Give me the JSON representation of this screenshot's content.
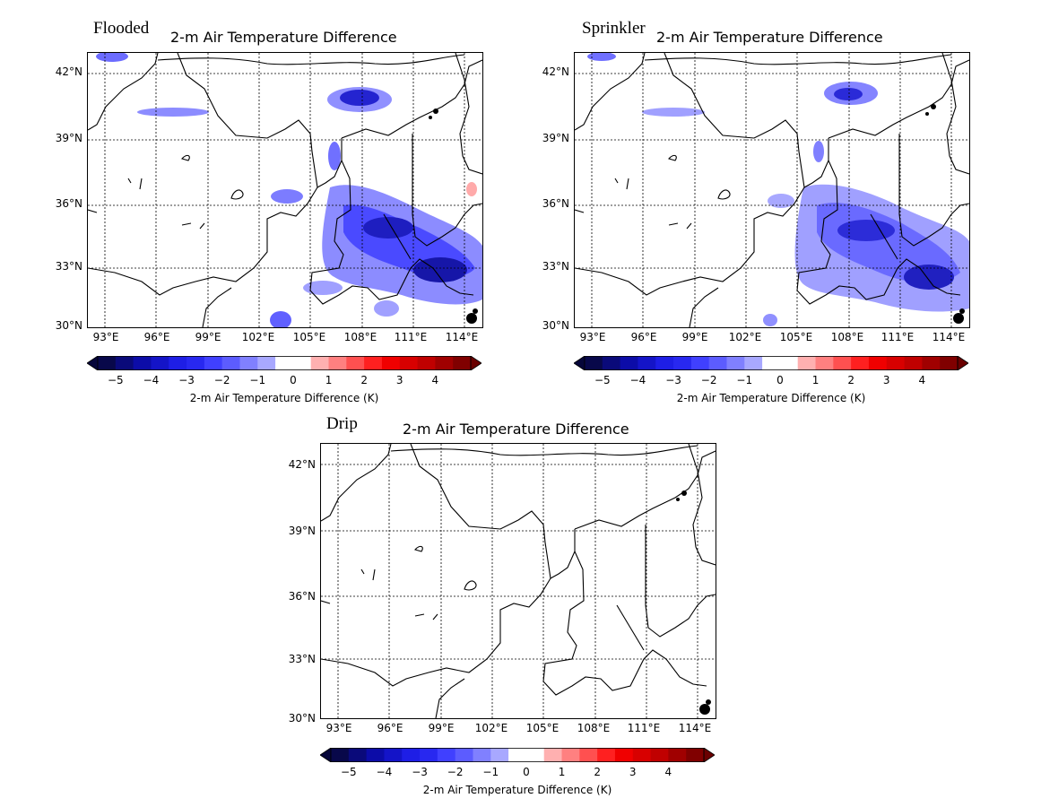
{
  "figure": {
    "panels": [
      {
        "id": "flooded",
        "label": "Flooded",
        "title": "2-m Air Temperature Difference",
        "colorbar_label": "2-m Air Temperature Difference (K)"
      },
      {
        "id": "sprinkler",
        "label": "Sprinkler",
        "title": "2-m Air Temperature Difference",
        "colorbar_label": "2-m Air Temperature Difference (K)"
      },
      {
        "id": "drip",
        "label": "Drip",
        "title": "2-m Air Temperature Difference",
        "colorbar_label": "2-m Air Temperature Difference (K)"
      }
    ],
    "lat_ticks": [
      "42°N",
      "39°N",
      "36°N",
      "33°N",
      "30°N"
    ],
    "lon_ticks": [
      "93°E",
      "96°E",
      "99°E",
      "102°E",
      "105°E",
      "108°E",
      "111°E",
      "114°E"
    ],
    "colorbar_ticks": [
      "−5",
      "−4",
      "−3",
      "−2",
      "−1",
      "0",
      "1",
      "2",
      "3",
      "4"
    ]
  },
  "map_extent": {
    "lon_min": 92,
    "lon_max": 115,
    "lat_min": 30,
    "lat_max": 43
  },
  "colorbar": {
    "min": -5.5,
    "max": 5,
    "step": 0.5,
    "colors": [
      "#08084a",
      "#0a0a7a",
      "#0c0ca8",
      "#1414c8",
      "#1e1ee6",
      "#2828f0",
      "#4040ff",
      "#5c5cff",
      "#8080ff",
      "#a8a8ff",
      "#ffffff",
      "#ffffff",
      "#ffb0b0",
      "#ff8080",
      "#ff5050",
      "#ff2020",
      "#f00000",
      "#d80000",
      "#c00000",
      "#a00000",
      "#800000"
    ],
    "extend": "both",
    "under_color": "#06063a",
    "over_color": "#6a0000"
  },
  "colors": {
    "land_fill": "#ffffff",
    "border": "#000000",
    "grid": "#000000"
  }
}
